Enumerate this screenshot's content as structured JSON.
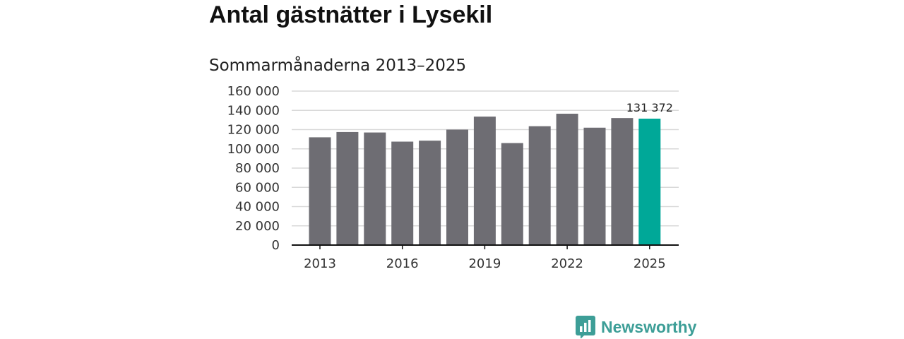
{
  "title": "Antal gästnätter i Lysekil",
  "subtitle": "Sommarmånaderna 2013–2025",
  "brand": {
    "name": "Newsworthy",
    "icon": "newsworthy-logo-icon",
    "color": "#3d9e97"
  },
  "colors": {
    "bar": "#6e6d73",
    "highlight": "#00a898",
    "grid": "#d9d9d9",
    "axis": "#111111"
  },
  "chart_data": {
    "type": "bar",
    "title": "Antal gästnätter i Lysekil",
    "subtitle": "Sommarmånaderna 2013–2025",
    "categories": [
      "2013",
      "2014",
      "2015",
      "2016",
      "2017",
      "2018",
      "2019",
      "2020",
      "2021",
      "2022",
      "2023",
      "2024",
      "2025"
    ],
    "values": [
      112000,
      117500,
      117000,
      107500,
      108500,
      120000,
      133500,
      106000,
      123500,
      136500,
      122000,
      132000,
      131372
    ],
    "ylim": [
      0,
      160000
    ],
    "yticks": [
      0,
      20000,
      40000,
      60000,
      80000,
      100000,
      120000,
      140000,
      160000
    ],
    "ytick_labels": [
      "0",
      "20 000",
      "40 000",
      "60 000",
      "80 000",
      "100 000",
      "120 000",
      "140 000",
      "160 000"
    ],
    "xtick_labels": [
      "2013",
      "2016",
      "2019",
      "2022",
      "2025"
    ],
    "highlight_index": 12,
    "annotation": "131 372",
    "grid": true,
    "legend": "none"
  }
}
